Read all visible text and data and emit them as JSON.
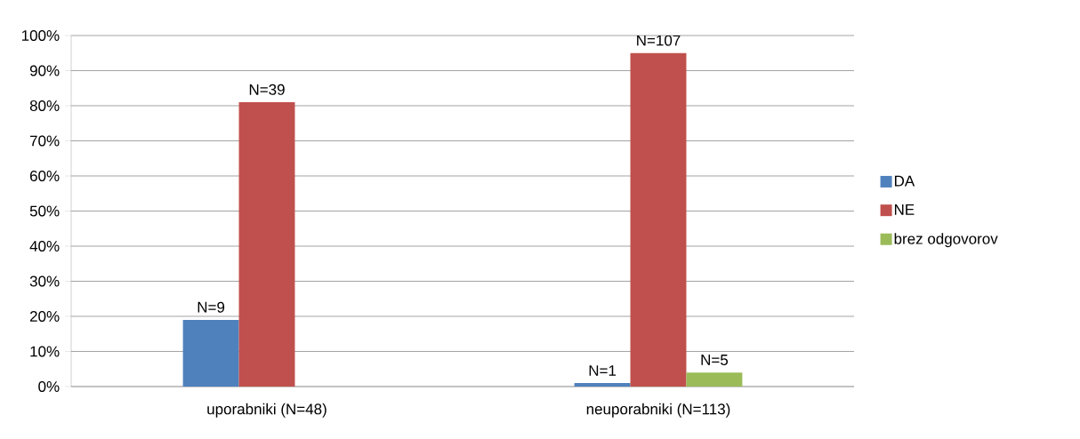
{
  "chart_data": {
    "type": "bar",
    "categories": [
      "uporabniki (N=48)",
      "neuporabniki (N=113)"
    ],
    "series": [
      {
        "name": "DA",
        "color": "#4f81bd",
        "values": [
          19,
          1
        ]
      },
      {
        "name": "NE",
        "color": "#c0504d",
        "values": [
          81,
          95
        ]
      },
      {
        "name": "brez odgovorov",
        "color": "#9bbb59",
        "values": [
          null,
          4
        ]
      }
    ],
    "annotations": [
      "N=9",
      "N=1",
      "N=39",
      "N=107",
      "N=5"
    ],
    "ylim": [
      0,
      100
    ],
    "yticks": [
      {
        "value": 0,
        "label": "0%"
      },
      {
        "value": 10,
        "label": "10%"
      },
      {
        "value": 20,
        "label": "20%"
      },
      {
        "value": 30,
        "label": "30%"
      },
      {
        "value": 40,
        "label": "40%"
      },
      {
        "value": 50,
        "label": "50%"
      },
      {
        "value": 60,
        "label": "60%"
      },
      {
        "value": 70,
        "label": "70%"
      },
      {
        "value": 80,
        "label": "80%"
      },
      {
        "value": 90,
        "label": "90%"
      },
      {
        "value": 100,
        "label": "100%"
      }
    ],
    "grid": "y",
    "legend": "right"
  }
}
